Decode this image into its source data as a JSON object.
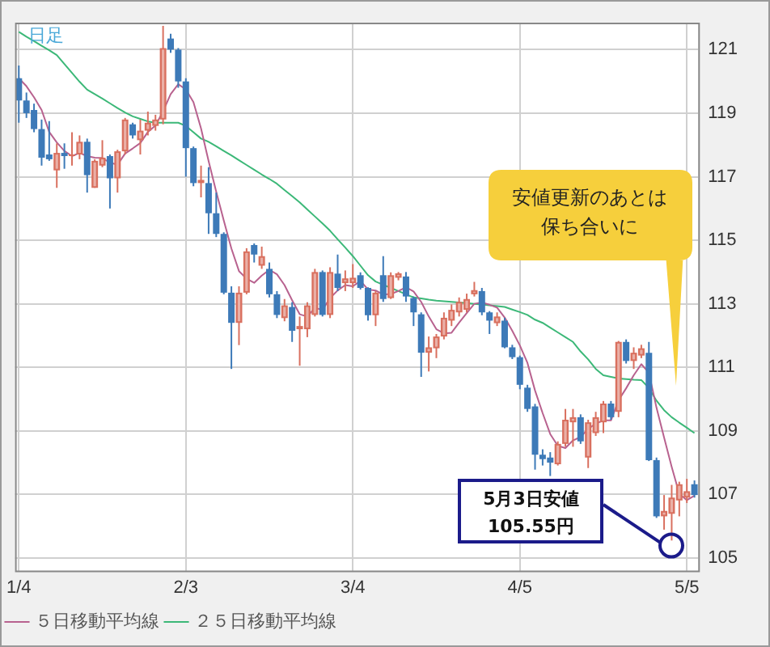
{
  "chart_data": {
    "type": "candlestick",
    "categories": [
      "1/4",
      null,
      null,
      null,
      null,
      null,
      null,
      null,
      null,
      null,
      null,
      null,
      null,
      null,
      null,
      null,
      null,
      null,
      null,
      null,
      null,
      null,
      "2/3",
      null,
      null,
      null,
      null,
      null,
      null,
      null,
      null,
      null,
      null,
      null,
      null,
      null,
      null,
      null,
      null,
      null,
      null,
      null,
      null,
      null,
      "3/4",
      null,
      null,
      null,
      null,
      null,
      null,
      null,
      null,
      null,
      null,
      null,
      null,
      null,
      null,
      null,
      null,
      null,
      null,
      null,
      null,
      null,
      "4/5",
      null,
      null,
      null,
      null,
      null,
      null,
      null,
      null,
      null,
      null,
      null,
      null,
      null,
      null,
      null,
      null,
      null,
      null,
      null,
      null,
      null,
      "5/5",
      null
    ],
    "ohlc": [
      [
        120.1,
        120.5,
        118.7,
        119.4
      ],
      [
        119.4,
        119.65,
        118.85,
        119.0
      ],
      [
        119.1,
        119.3,
        118.4,
        118.5
      ],
      [
        118.5,
        118.8,
        117.35,
        117.6
      ],
      [
        117.7,
        118.75,
        117.5,
        117.55
      ],
      [
        117.2,
        118.05,
        116.65,
        117.75
      ],
      [
        117.75,
        118.05,
        117.25,
        117.65
      ],
      [
        117.65,
        118.4,
        117.35,
        117.7
      ],
      [
        117.7,
        118.3,
        117.55,
        118.1
      ],
      [
        118.1,
        118.2,
        116.5,
        117.05
      ],
      [
        116.65,
        117.55,
        116.65,
        117.5
      ],
      [
        117.35,
        118.15,
        117.3,
        117.6
      ],
      [
        117.65,
        117.7,
        116.0,
        116.95
      ],
      [
        116.95,
        117.85,
        116.5,
        117.8
      ],
      [
        117.8,
        118.85,
        117.7,
        118.8
      ],
      [
        118.65,
        118.7,
        118.2,
        118.3
      ],
      [
        118.15,
        118.8,
        117.7,
        118.45
      ],
      [
        118.45,
        119.05,
        118.3,
        118.7
      ],
      [
        118.6,
        118.95,
        118.45,
        118.8
      ],
      [
        118.8,
        121.75,
        118.65,
        121.05
      ],
      [
        121.35,
        121.5,
        120.9,
        121.0
      ],
      [
        121.0,
        121.05,
        119.8,
        120.0
      ],
      [
        120.0,
        120.1,
        117.0,
        117.9
      ],
      [
        117.9,
        117.95,
        116.7,
        116.8
      ],
      [
        116.8,
        117.35,
        116.35,
        116.9
      ],
      [
        116.8,
        117.3,
        115.2,
        115.85
      ],
      [
        115.85,
        116.5,
        115.1,
        115.2
      ],
      [
        115.2,
        115.25,
        113.3,
        113.35
      ],
      [
        113.35,
        113.55,
        110.95,
        112.4
      ],
      [
        112.4,
        113.55,
        111.7,
        113.35
      ],
      [
        113.35,
        114.75,
        113.3,
        114.65
      ],
      [
        114.85,
        114.9,
        114.3,
        114.55
      ],
      [
        114.2,
        114.8,
        114.1,
        114.5
      ],
      [
        114.1,
        114.3,
        113.2,
        113.3
      ],
      [
        113.3,
        113.4,
        112.55,
        112.65
      ],
      [
        112.55,
        113.15,
        112.45,
        112.95
      ],
      [
        112.9,
        113.05,
        111.8,
        112.15
      ],
      [
        112.2,
        112.6,
        111.05,
        112.3
      ],
      [
        112.2,
        113.05,
        111.95,
        112.95
      ],
      [
        112.65,
        114.1,
        112.6,
        114.0
      ],
      [
        114.0,
        114.05,
        112.6,
        112.65
      ],
      [
        112.65,
        114.15,
        112.55,
        114.0
      ],
      [
        113.95,
        114.55,
        113.4,
        113.5
      ],
      [
        113.65,
        114.05,
        113.4,
        113.8
      ],
      [
        113.65,
        114.25,
        113.5,
        113.82
      ],
      [
        113.9,
        113.99,
        113.45,
        113.5
      ],
      [
        113.5,
        113.52,
        112.47,
        112.64
      ],
      [
        112.64,
        113.4,
        112.3,
        113.35
      ],
      [
        113.9,
        114.5,
        113.06,
        113.15
      ],
      [
        113.18,
        113.99,
        113.15,
        113.9
      ],
      [
        113.82,
        114.0,
        113.74,
        113.96
      ],
      [
        113.86,
        114.0,
        113.06,
        113.23
      ],
      [
        113.18,
        113.23,
        112.3,
        112.73
      ],
      [
        112.67,
        112.73,
        110.7,
        111.46
      ],
      [
        111.46,
        111.97,
        110.87,
        111.63
      ],
      [
        111.6,
        112.05,
        111.29,
        111.97
      ],
      [
        111.97,
        112.73,
        111.88,
        112.56
      ],
      [
        112.47,
        112.98,
        112.3,
        112.81
      ],
      [
        112.73,
        113.2,
        112.6,
        113.06
      ],
      [
        112.81,
        113.32,
        112.73,
        113.15
      ],
      [
        113.3,
        113.69,
        113.23,
        113.43
      ],
      [
        113.4,
        113.5,
        112.64,
        112.73
      ],
      [
        112.73,
        112.77,
        112.05,
        112.47
      ],
      [
        112.39,
        112.73,
        112.3,
        112.6
      ],
      [
        112.47,
        112.56,
        111.6,
        111.63
      ],
      [
        111.63,
        111.71,
        111.26,
        111.32
      ],
      [
        111.32,
        111.37,
        110.31,
        110.45
      ],
      [
        110.36,
        110.45,
        109.6,
        109.69
      ],
      [
        109.77,
        109.85,
        107.78,
        108.25
      ],
      [
        108.25,
        108.42,
        107.91,
        108.11
      ],
      [
        108.16,
        108.33,
        107.58,
        108.0
      ],
      [
        107.95,
        108.67,
        107.91,
        108.59
      ],
      [
        108.59,
        109.69,
        108.5,
        109.35
      ],
      [
        109.27,
        109.69,
        108.5,
        109.43
      ],
      [
        109.43,
        109.52,
        108.59,
        108.67
      ],
      [
        108.16,
        109.35,
        107.83,
        109.27
      ],
      [
        108.93,
        109.6,
        108.84,
        109.43
      ],
      [
        109.27,
        109.94,
        108.93,
        109.86
      ],
      [
        109.86,
        109.94,
        109.35,
        109.43
      ],
      [
        109.6,
        111.83,
        109.43,
        111.8
      ],
      [
        111.8,
        111.88,
        111.12,
        111.2
      ],
      [
        111.2,
        111.63,
        110.95,
        111.46
      ],
      [
        111.37,
        111.71,
        111.29,
        111.6
      ],
      [
        111.46,
        111.8,
        108.05,
        108.08
      ],
      [
        108.08,
        108.16,
        106.26,
        106.31
      ],
      [
        106.31,
        106.98,
        105.89,
        106.48
      ],
      [
        106.39,
        107.3,
        105.55,
        106.9
      ],
      [
        106.81,
        107.4,
        106.31,
        107.32
      ],
      [
        106.9,
        107.49,
        106.73,
        107.1
      ],
      [
        107.32,
        107.44,
        106.9,
        106.98
      ]
    ],
    "colors": [
      "#3d7ab8",
      "#3d7ab8",
      "#3d7ab8",
      "#3d7ab8",
      "#3d7ab8",
      "#d9705f",
      "#3d7ab8",
      "#d9705f",
      "#d9705f",
      "#3d7ab8",
      "#d9705f",
      "#d9705f",
      "#3d7ab8",
      "#d9705f",
      "#d9705f",
      "#3d7ab8",
      "#d9705f",
      "#d9705f",
      "#d9705f",
      "#d9705f",
      "#3d7ab8",
      "#3d7ab8",
      "#3d7ab8",
      "#3d7ab8",
      "#d9705f",
      "#3d7ab8",
      "#3d7ab8",
      "#3d7ab8",
      "#3d7ab8",
      "#d9705f",
      "#d9705f",
      "#3d7ab8",
      "#d9705f",
      "#3d7ab8",
      "#3d7ab8",
      "#d9705f",
      "#3d7ab8",
      "#d9705f",
      "#d9705f",
      "#d9705f",
      "#3d7ab8",
      "#d9705f",
      "#3d7ab8",
      "#d9705f",
      "#d9705f",
      "#3d7ab8",
      "#3d7ab8",
      "#d9705f",
      "#3d7ab8",
      "#d9705f",
      "#d9705f",
      "#3d7ab8",
      "#3d7ab8",
      "#3d7ab8",
      "#d9705f",
      "#d9705f",
      "#d9705f",
      "#d9705f",
      "#d9705f",
      "#d9705f",
      "#d9705f",
      "#3d7ab8",
      "#3d7ab8",
      "#d9705f",
      "#3d7ab8",
      "#3d7ab8",
      "#3d7ab8",
      "#3d7ab8",
      "#3d7ab8",
      "#3d7ab8",
      "#3d7ab8",
      "#d9705f",
      "#d9705f",
      "#d9705f",
      "#3d7ab8",
      "#d9705f",
      "#d9705f",
      "#d9705f",
      "#3d7ab8",
      "#d9705f",
      "#3d7ab8",
      "#d9705f",
      "#d9705f",
      "#3d7ab8",
      "#3d7ab8",
      "#d9705f",
      "#d9705f",
      "#d9705f",
      "#d9705f",
      "#3d7ab8"
    ],
    "series": [
      {
        "name": "５日移動平均線",
        "type": "line",
        "color": "#b8628f",
        "values": [
          120.1,
          119.85,
          119.5,
          119.1,
          118.41,
          118.08,
          117.81,
          117.65,
          117.75,
          117.65,
          117.6,
          117.59,
          117.44,
          117.38,
          117.73,
          117.89,
          118.06,
          118.41,
          118.61,
          119.06,
          119.6,
          119.91,
          119.75,
          119.35,
          118.52,
          117.49,
          116.53,
          115.62,
          114.74,
          114.03,
          113.79,
          113.66,
          113.89,
          114.07,
          113.93,
          113.59,
          113.11,
          112.67,
          112.6,
          112.87,
          112.81,
          113.18,
          113.42,
          113.59,
          113.55,
          113.72,
          113.45,
          113.42,
          113.29,
          113.31,
          113.4,
          113.52,
          113.39,
          113.06,
          112.6,
          112.2,
          112.07,
          112.09,
          112.41,
          112.71,
          113.0,
          113.04,
          112.97,
          112.88,
          112.57,
          112.15,
          111.69,
          111.14,
          110.27,
          109.56,
          108.9,
          108.53,
          108.46,
          108.7,
          108.81,
          109.06,
          109.23,
          109.33,
          109.33,
          109.96,
          110.34,
          110.75,
          111.1,
          110.83,
          109.73,
          108.79,
          107.87,
          107.02,
          106.82,
          106.96
        ]
      },
      {
        "name": "２５日移動平均線",
        "type": "line",
        "color": "#3cb878",
        "values": [
          121.56,
          121.41,
          121.27,
          121.12,
          120.98,
          120.83,
          120.55,
          120.27,
          119.99,
          119.74,
          119.6,
          119.46,
          119.31,
          119.16,
          119.02,
          118.9,
          118.82,
          118.74,
          118.7,
          118.7,
          118.7,
          118.7,
          118.6,
          118.4,
          118.2,
          118.1,
          117.96,
          117.81,
          117.67,
          117.52,
          117.37,
          117.22,
          117.07,
          116.93,
          116.78,
          116.58,
          116.39,
          116.19,
          115.97,
          115.75,
          115.53,
          115.3,
          115.03,
          114.77,
          114.5,
          114.2,
          113.9,
          113.7,
          113.6,
          113.5,
          113.4,
          113.3,
          113.2,
          113.17,
          113.13,
          113.1,
          113.08,
          113.06,
          113.04,
          113.02,
          113.0,
          112.98,
          112.95,
          112.93,
          112.9,
          112.82,
          112.74,
          112.65,
          112.5,
          112.4,
          112.25,
          112.1,
          111.95,
          111.8,
          111.5,
          111.25,
          110.95,
          110.75,
          110.7,
          110.65,
          110.63,
          110.61,
          110.6,
          110.35,
          109.95,
          109.65,
          109.43,
          109.26,
          109.1,
          108.93
        ]
      }
    ],
    "ylim": [
      104.6,
      121.85
    ],
    "yticks": [
      105,
      107,
      109,
      111,
      113,
      115,
      117,
      119,
      121
    ],
    "grid": true,
    "legend": "bottom",
    "annotations": [
      "日足",
      "安値更新のあとは保ち合いに",
      "5月3日安値105.55円"
    ]
  }
}
